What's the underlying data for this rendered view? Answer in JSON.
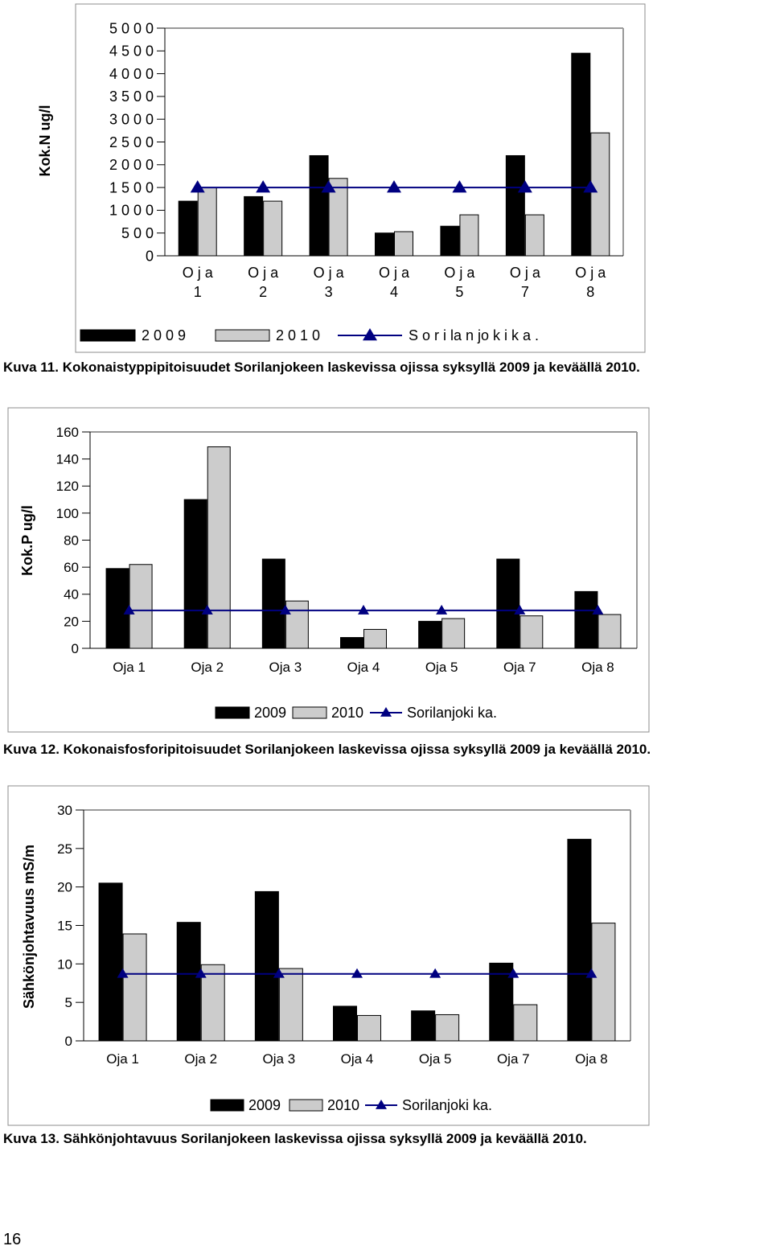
{
  "colors": {
    "y2009": "#000000",
    "y2010": "#cccccc",
    "avg": "#000080",
    "frame": "#8c8c8c"
  },
  "charts": [
    {
      "caption": "Kuva 11. Kokonaistyppipitoisuudet Sorilanjokeen laskevissa ojissa syksyllä 2009 ja keväällä 2010.",
      "chart_data": {
        "type": "bar",
        "ylabel": "Kok.N ug/l",
        "ylim": [
          0,
          5000
        ],
        "yticks": [
          "0",
          "5 0 0",
          "1 0 0 0",
          "1 5 0 0",
          "2 0 0 0",
          "2 5 0 0",
          "3 0 0 0",
          "3 5 0 0",
          "4 0 0 0",
          "4 5 0 0",
          "5 0 0 0"
        ],
        "categories": [
          [
            "O j a",
            "1"
          ],
          [
            "O j a",
            "2"
          ],
          [
            "O j a",
            "3"
          ],
          [
            "O j a",
            "4"
          ],
          [
            "O j a",
            "5"
          ],
          [
            "O j a",
            "7"
          ],
          [
            "O j a",
            "8"
          ]
        ],
        "series": [
          {
            "name": "2 0 0 9",
            "kind": "bar",
            "values": [
              1200,
              1300,
              2200,
              500,
              650,
              2200,
              4450
            ]
          },
          {
            "name": "2 0 1 0",
            "kind": "bar",
            "values": [
              1500,
              1200,
              1700,
              530,
              900,
              900,
              2700
            ]
          },
          {
            "name": "S o r i la n jo k i  k a .",
            "kind": "line",
            "values": [
              1500,
              1500,
              1500,
              1500,
              1500,
              1500,
              1500
            ]
          }
        ],
        "legend": "bottom"
      }
    },
    {
      "caption": "Kuva 12. Kokonaisfosforipitoisuudet Sorilanjokeen laskevissa ojissa syksyllä 2009 ja keväällä 2010.",
      "chart_data": {
        "type": "bar",
        "ylabel": "Kok.P ug/l",
        "ylim": [
          0,
          160
        ],
        "yticks": [
          "0",
          "20",
          "40",
          "60",
          "80",
          "100",
          "120",
          "140",
          "160"
        ],
        "categories": [
          [
            "Oja 1"
          ],
          [
            "Oja 2"
          ],
          [
            "Oja 3"
          ],
          [
            "Oja 4"
          ],
          [
            "Oja 5"
          ],
          [
            "Oja 7"
          ],
          [
            "Oja 8"
          ]
        ],
        "series": [
          {
            "name": "2009",
            "kind": "bar",
            "values": [
              59,
              110,
              66,
              8,
              20,
              66,
              42
            ]
          },
          {
            "name": "2010",
            "kind": "bar",
            "values": [
              62,
              149,
              35,
              14,
              22,
              24,
              25
            ]
          },
          {
            "name": "Sorilanjoki ka.",
            "kind": "line",
            "values": [
              28,
              28,
              28,
              28,
              28,
              28,
              28
            ]
          }
        ],
        "legend": "bottom"
      }
    },
    {
      "caption": "Kuva 13. Sähkönjohtavuus Sorilanjokeen laskevissa ojissa syksyllä 2009 ja keväällä 2010.",
      "chart_data": {
        "type": "bar",
        "ylabel": "Sähkönjohtavuus mS/m",
        "ylim": [
          0,
          30
        ],
        "yticks": [
          "0",
          "5",
          "10",
          "15",
          "20",
          "25",
          "30"
        ],
        "categories": [
          [
            "Oja 1"
          ],
          [
            "Oja 2"
          ],
          [
            "Oja 3"
          ],
          [
            "Oja 4"
          ],
          [
            "Oja 5"
          ],
          [
            "Oja 7"
          ],
          [
            "Oja 8"
          ]
        ],
        "series": [
          {
            "name": "2009",
            "kind": "bar",
            "values": [
              20.5,
              15.4,
              19.4,
              4.5,
              3.9,
              10.1,
              26.2
            ]
          },
          {
            "name": "2010",
            "kind": "bar",
            "values": [
              13.9,
              9.9,
              9.4,
              3.3,
              3.4,
              4.7,
              15.3
            ]
          },
          {
            "name": "Sorilanjoki ka.",
            "kind": "line",
            "values": [
              8.7,
              8.7,
              8.7,
              8.7,
              8.7,
              8.7,
              8.7
            ]
          }
        ],
        "legend": "bottom"
      }
    }
  ],
  "page_number": "16"
}
